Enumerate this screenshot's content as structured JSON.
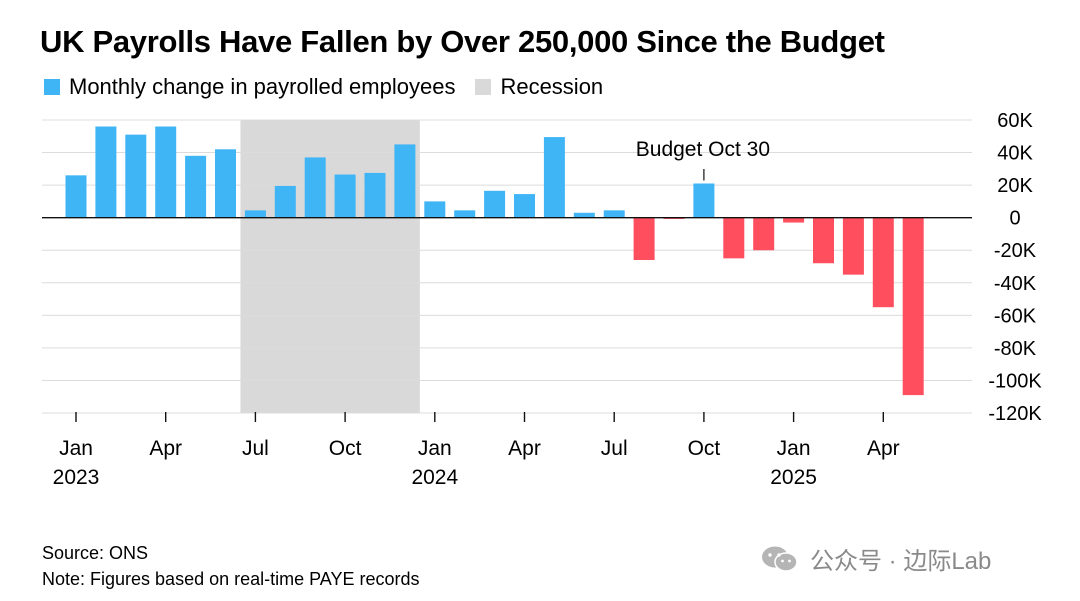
{
  "title": "UK Payrolls Have Fallen by Over 250,000 Since the Budget",
  "legend": [
    {
      "label": "Monthly change in payrolled employees",
      "color": "#3fb5f5"
    },
    {
      "label": "Recession",
      "color": "#d9d9d9"
    }
  ],
  "annotation": "Budget Oct 30",
  "source": "Source: ONS",
  "note": "Note: Figures based on real-time PAYE records",
  "watermark": "公众号 · 边际Lab",
  "chart_data": {
    "type": "bar",
    "categories": [
      "2023-01",
      "2023-02",
      "2023-03",
      "2023-04",
      "2023-05",
      "2023-06",
      "2023-07",
      "2023-08",
      "2023-09",
      "2023-10",
      "2023-11",
      "2023-12",
      "2024-01",
      "2024-02",
      "2024-03",
      "2024-04",
      "2024-05",
      "2024-06",
      "2024-07",
      "2024-08",
      "2024-09",
      "2024-10",
      "2024-11",
      "2024-12",
      "2025-01",
      "2025-02",
      "2025-03",
      "2025-04",
      "2025-05",
      "2025-06"
    ],
    "values": [
      26000,
      56000,
      51000,
      56000,
      38000,
      42000,
      4500,
      19500,
      37000,
      26500,
      27500,
      45000,
      10000,
      4500,
      16500,
      14500,
      49500,
      3000,
      4500,
      -26000,
      -800,
      21000,
      -25000,
      -20000,
      -3000,
      -28000,
      -35000,
      -55000,
      -109000,
      null
    ],
    "positive_color": "#3fb5f5",
    "negative_color": "#ff4f5e",
    "recession": {
      "start": "2023-07",
      "end": "2023-12"
    },
    "ylim": [
      -120000,
      60000
    ],
    "yticks": [
      60000,
      40000,
      20000,
      0,
      -20000,
      -40000,
      -60000,
      -80000,
      -100000,
      -120000
    ],
    "ytick_labels": [
      "60K",
      "40K",
      "20K",
      "0",
      "-20K",
      "-40K",
      "-60K",
      "-80K",
      "-100K",
      "-120K"
    ],
    "xtick_labels": [
      {
        "category": "2023-01",
        "label": "Jan",
        "year": "2023"
      },
      {
        "category": "2023-04",
        "label": "Apr"
      },
      {
        "category": "2023-07",
        "label": "Jul"
      },
      {
        "category": "2023-10",
        "label": "Oct"
      },
      {
        "category": "2024-01",
        "label": "Jan",
        "year": "2024"
      },
      {
        "category": "2024-04",
        "label": "Apr"
      },
      {
        "category": "2024-07",
        "label": "Jul"
      },
      {
        "category": "2024-10",
        "label": "Oct"
      },
      {
        "category": "2025-01",
        "label": "Jan",
        "year": "2025"
      },
      {
        "category": "2025-04",
        "label": "Apr"
      }
    ],
    "annotation_category": "2024-10",
    "grid": true,
    "legend_position": "top-left"
  }
}
